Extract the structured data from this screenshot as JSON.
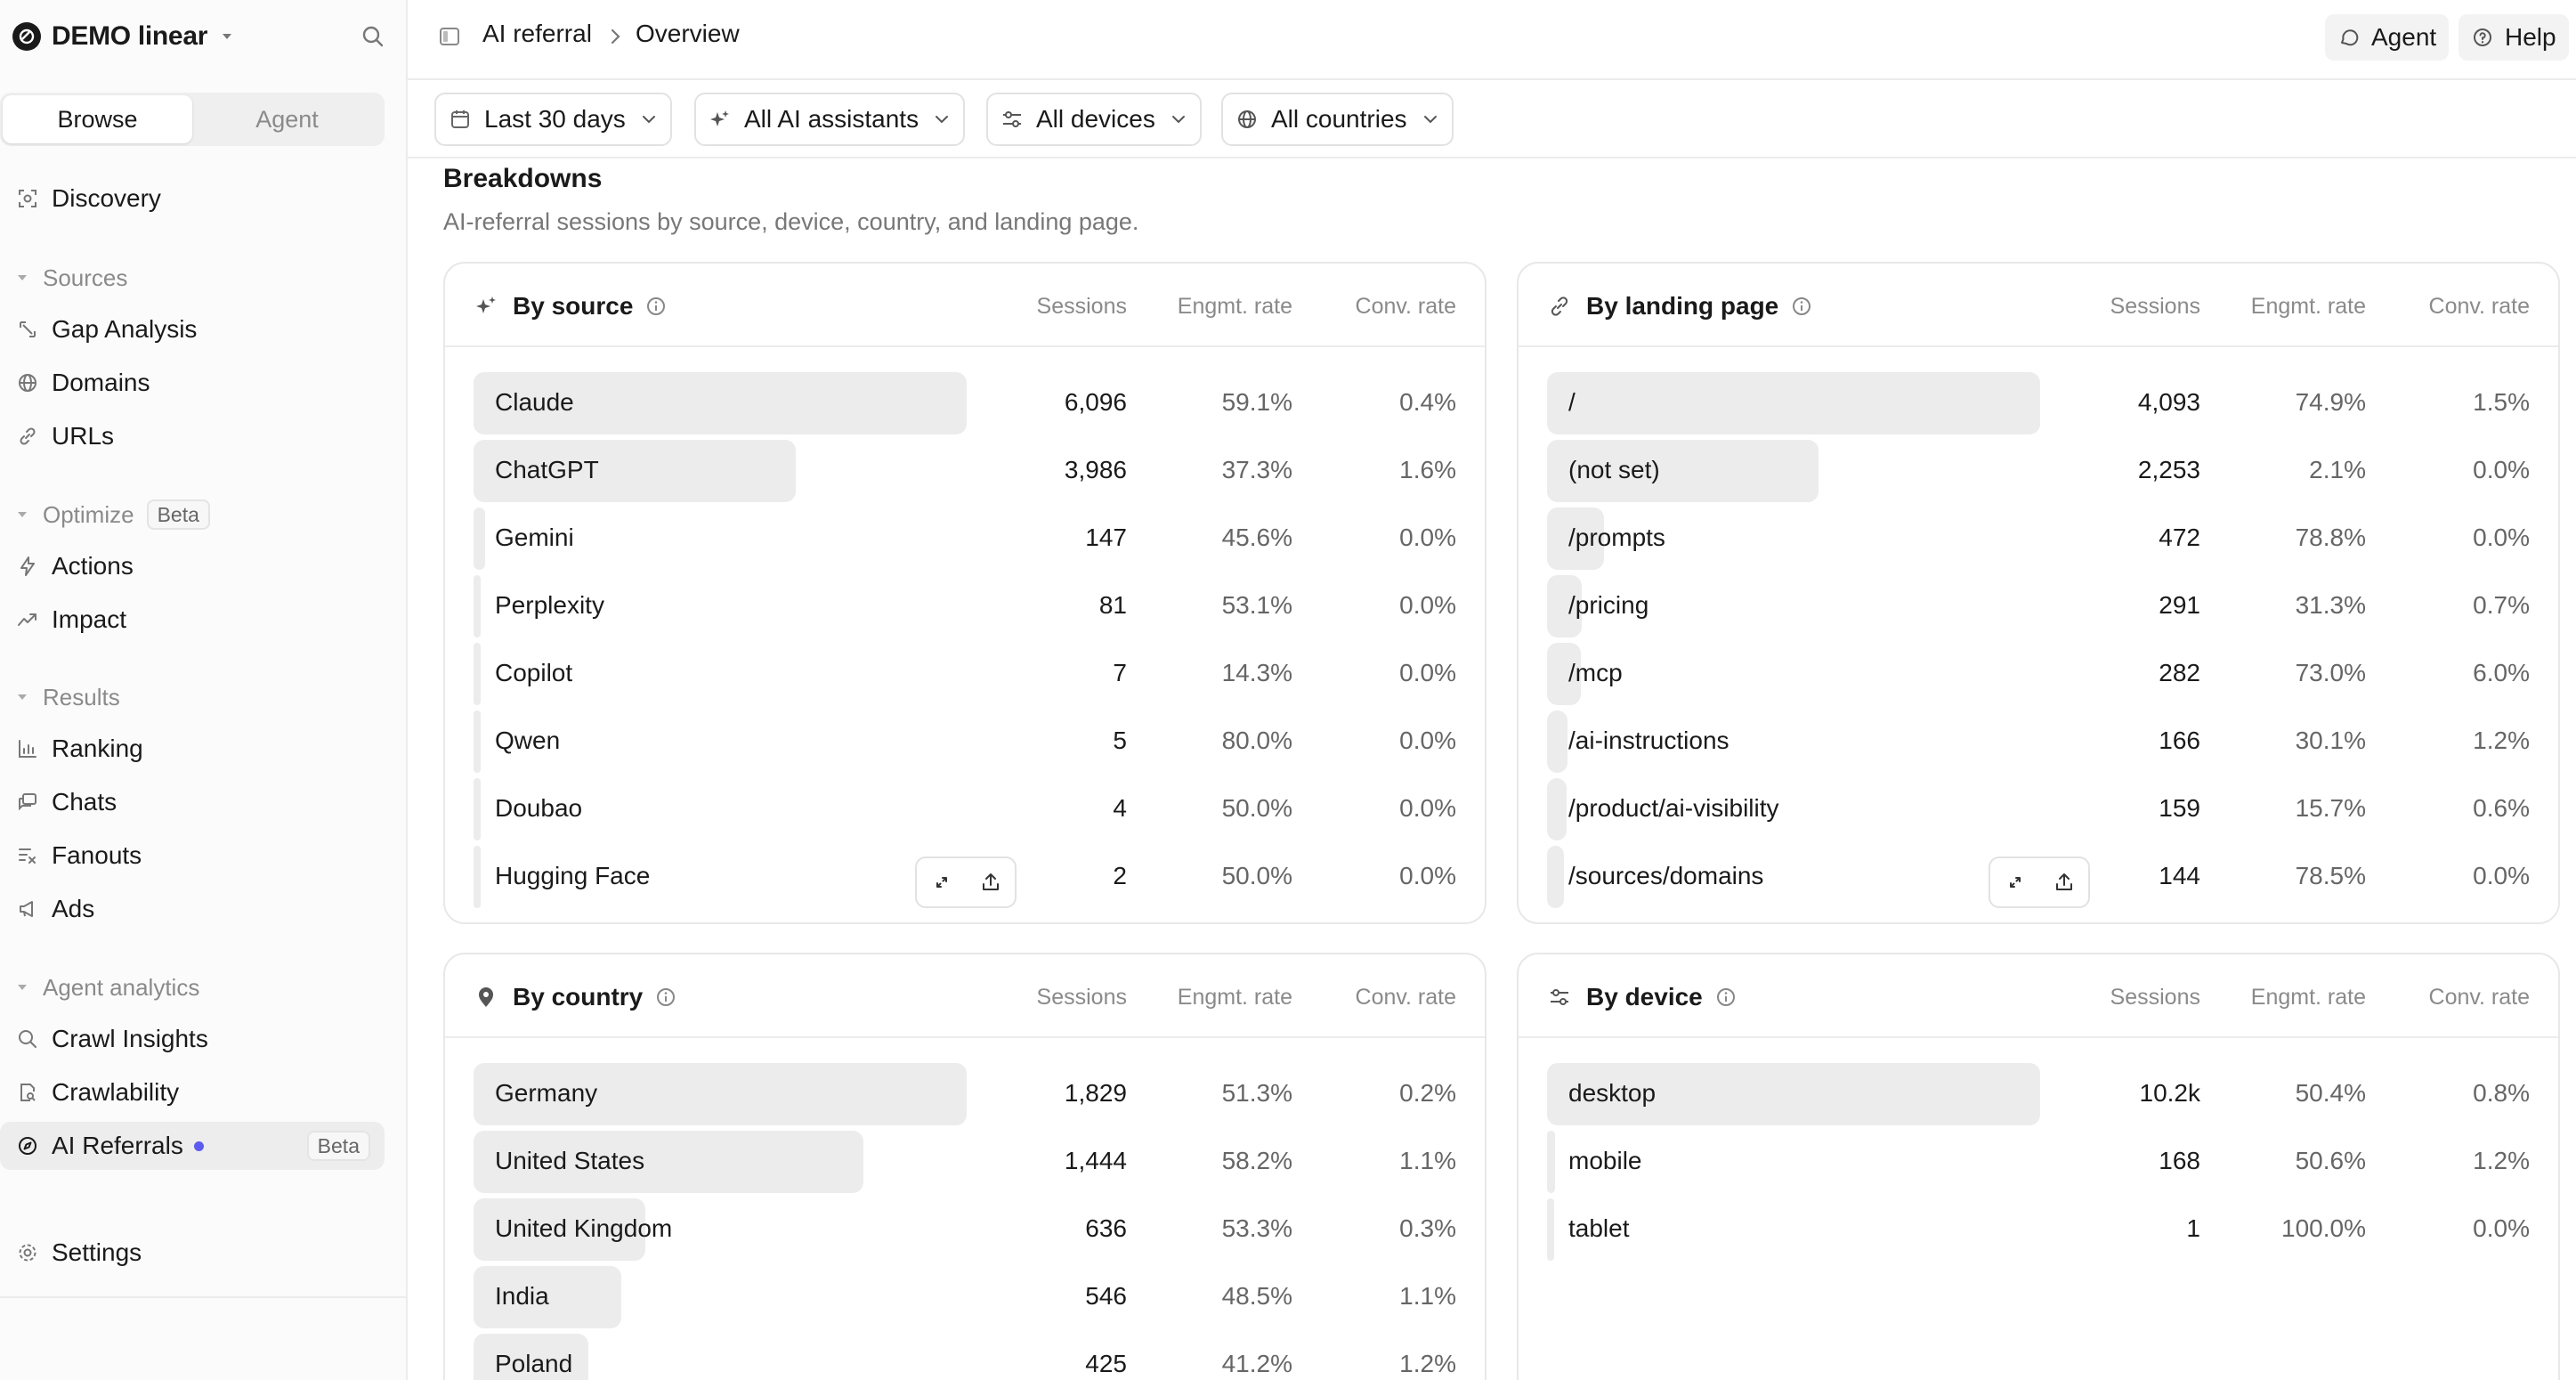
{
  "workspace": {
    "name": "DEMO linear"
  },
  "sidebar": {
    "tabs": [
      {
        "label": "Browse"
      },
      {
        "label": "Agent"
      }
    ],
    "discovery": "Discovery",
    "sources_header": "Sources",
    "gap_analysis": "Gap Analysis",
    "domains": "Domains",
    "urls": "URLs",
    "optimize_header": "Optimize",
    "optimize_badge": "Beta",
    "actions": "Actions",
    "impact": "Impact",
    "results_header": "Results",
    "ranking": "Ranking",
    "chats": "Chats",
    "fanouts": "Fanouts",
    "ads": "Ads",
    "agent_analytics_header": "Agent analytics",
    "crawl_insights": "Crawl Insights",
    "crawlability": "Crawlability",
    "ai_referrals": "AI Referrals",
    "ai_referrals_badge": "Beta",
    "settings": "Settings"
  },
  "topbar": {
    "breadcrumb": [
      "AI referral",
      "Overview"
    ],
    "agent_label": "Agent",
    "help_label": "Help"
  },
  "filters": {
    "date": "Last 30 days",
    "assistants": "All AI assistants",
    "devices": "All devices",
    "countries": "All countries"
  },
  "section": {
    "title": "Breakdowns",
    "subtitle": "AI-referral sessions by source, device, country, and landing page."
  },
  "columns": {
    "sessions": "Sessions",
    "engagement": "Engmt. rate",
    "conversion": "Conv. rate"
  },
  "cards": {
    "source": {
      "title": "By source",
      "rows": [
        {
          "label": "Claude",
          "sessions": "6,096",
          "engagement": "59.1%",
          "conversion": "0.4%",
          "share": 1.0
        },
        {
          "label": "ChatGPT",
          "sessions": "3,986",
          "engagement": "37.3%",
          "conversion": "1.6%",
          "share": 0.654
        },
        {
          "label": "Gemini",
          "sessions": "147",
          "engagement": "45.6%",
          "conversion": "0.0%",
          "share": 0.024
        },
        {
          "label": "Perplexity",
          "sessions": "81",
          "engagement": "53.1%",
          "conversion": "0.0%",
          "share": 0.013
        },
        {
          "label": "Copilot",
          "sessions": "7",
          "engagement": "14.3%",
          "conversion": "0.0%",
          "share": 0.001
        },
        {
          "label": "Qwen",
          "sessions": "5",
          "engagement": "80.0%",
          "conversion": "0.0%",
          "share": 0.001
        },
        {
          "label": "Doubao",
          "sessions": "4",
          "engagement": "50.0%",
          "conversion": "0.0%",
          "share": 0.001
        },
        {
          "label": "Hugging Face",
          "sessions": "2",
          "engagement": "50.0%",
          "conversion": "0.0%",
          "share": 0.0
        }
      ]
    },
    "landing": {
      "title": "By landing page",
      "rows": [
        {
          "label": "/",
          "sessions": "4,093",
          "engagement": "74.9%",
          "conversion": "1.5%",
          "share": 1.0
        },
        {
          "label": "(not set)",
          "sessions": "2,253",
          "engagement": "2.1%",
          "conversion": "0.0%",
          "share": 0.55
        },
        {
          "label": "/prompts",
          "sessions": "472",
          "engagement": "78.8%",
          "conversion": "0.0%",
          "share": 0.115
        },
        {
          "label": "/pricing",
          "sessions": "291",
          "engagement": "31.3%",
          "conversion": "0.7%",
          "share": 0.071
        },
        {
          "label": "/mcp",
          "sessions": "282",
          "engagement": "73.0%",
          "conversion": "6.0%",
          "share": 0.069
        },
        {
          "label": "/ai-instructions",
          "sessions": "166",
          "engagement": "30.1%",
          "conversion": "1.2%",
          "share": 0.041
        },
        {
          "label": "/product/ai-visibility",
          "sessions": "159",
          "engagement": "15.7%",
          "conversion": "0.6%",
          "share": 0.039
        },
        {
          "label": "/sources/domains",
          "sessions": "144",
          "engagement": "78.5%",
          "conversion": "0.0%",
          "share": 0.035
        }
      ]
    },
    "country": {
      "title": "By country",
      "rows": [
        {
          "label": "Germany",
          "sessions": "1,829",
          "engagement": "51.3%",
          "conversion": "0.2%",
          "share": 1.0
        },
        {
          "label": "United States",
          "sessions": "1,444",
          "engagement": "58.2%",
          "conversion": "1.1%",
          "share": 0.79
        },
        {
          "label": "United Kingdom",
          "sessions": "636",
          "engagement": "53.3%",
          "conversion": "0.3%",
          "share": 0.348
        },
        {
          "label": "India",
          "sessions": "546",
          "engagement": "48.5%",
          "conversion": "1.1%",
          "share": 0.299
        },
        {
          "label": "Poland",
          "sessions": "425",
          "engagement": "41.2%",
          "conversion": "1.2%",
          "share": 0.232
        }
      ]
    },
    "device": {
      "title": "By device",
      "rows": [
        {
          "label": "desktop",
          "sessions": "10.2k",
          "engagement": "50.4%",
          "conversion": "0.8%",
          "share": 1.0
        },
        {
          "label": "mobile",
          "sessions": "168",
          "engagement": "50.6%",
          "conversion": "1.2%",
          "share": 0.016
        },
        {
          "label": "tablet",
          "sessions": "1",
          "engagement": "100.0%",
          "conversion": "0.0%",
          "share": 0.0
        }
      ]
    }
  }
}
